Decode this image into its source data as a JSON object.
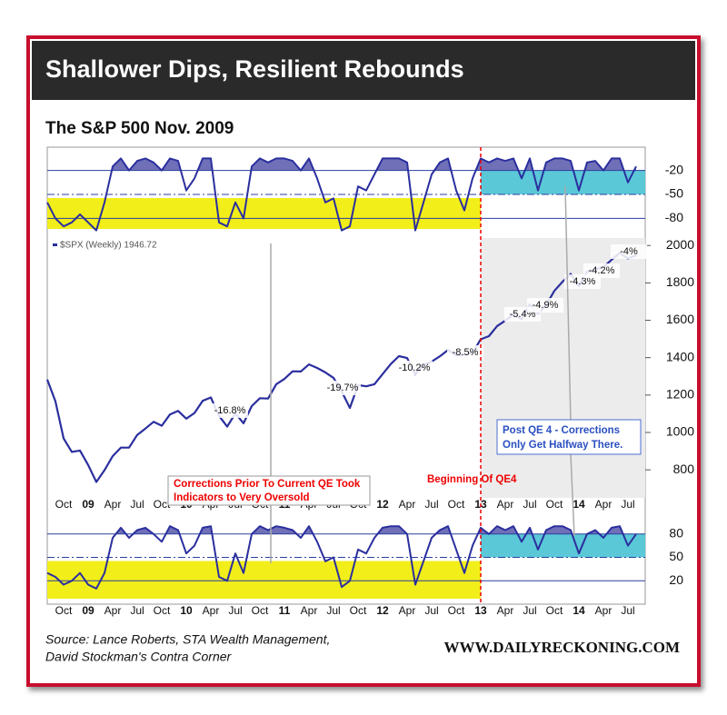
{
  "header": {
    "title": "Shallower Dips, Resilient Rebounds",
    "subtitle": "The S&P 500 Nov. 2009"
  },
  "notes": {
    "oversold": [
      "Corrections Prior To Current QE Took",
      "Indicators to Very Oversold"
    ],
    "qe4": "Beginning Of QE4",
    "post": [
      "Post QE 4 - Corrections",
      "Only Get Halfway There."
    ]
  },
  "footer": {
    "source": [
      "Source: Lance Roberts, STA Wealth Management,",
      "David Stockman's Contra Corner"
    ],
    "site": "WWW.DAILYRECKONING.COM"
  },
  "chart_data": [
    {
      "type": "line",
      "color": "#2b2f9e",
      "values": [
        -60,
        -80,
        -90,
        -85,
        -75,
        -85,
        -95,
        -60,
        -15,
        -5,
        -20,
        -8,
        -5,
        -10,
        -20,
        -5,
        -8,
        -45,
        -30,
        -5,
        -5,
        -85,
        -90,
        -60,
        -80,
        -15,
        -5,
        -10,
        -5,
        -5,
        -8,
        -20,
        -5,
        -30,
        -60,
        -55,
        -95,
        -90,
        -40,
        -45,
        -25,
        -5,
        -5,
        -5,
        -10,
        -95,
        -60,
        -25,
        -10,
        -5,
        -45,
        -70,
        -30,
        -5,
        -10,
        -5,
        -8,
        -5,
        -30,
        -5,
        -45,
        -10,
        -5,
        -5,
        -8,
        -45,
        -10,
        -8,
        -20,
        -5,
        -5,
        -35,
        -15
      ],
      "ylim": [
        -100,
        8
      ],
      "yticks": [
        -20,
        -50,
        -80
      ]
    },
    {
      "type": "line",
      "categories": [
        null,
        null,
        "Oct",
        null,
        null,
        "09",
        null,
        null,
        "Apr",
        null,
        null,
        "Jul",
        null,
        null,
        "Oct",
        null,
        null,
        "10",
        null,
        null,
        "Apr",
        null,
        null,
        "Jul",
        null,
        null,
        "Oct",
        null,
        null,
        "11",
        null,
        null,
        "Apr",
        null,
        null,
        "Jul",
        null,
        null,
        "Oct",
        null,
        null,
        "12",
        null,
        null,
        "Apr",
        null,
        null,
        "Jul",
        null,
        null,
        "Oct",
        null,
        null,
        "13",
        null,
        null,
        "Apr",
        null,
        null,
        "Jul",
        null,
        null,
        "Oct",
        null,
        null,
        "14",
        null,
        null,
        "Apr",
        null,
        null,
        "Jul",
        null
      ],
      "series": [
        {
          "name": "$SPX (Weekly) 1946.72",
          "color": "#2b2f9e",
          "values": [
            1283,
            1166,
            968,
            896,
            903,
            826,
            735,
            798,
            873,
            919,
            919,
            987,
            1021,
            1057,
            1036,
            1096,
            1115,
            1074,
            1104,
            1169,
            1187,
            1089,
            1031,
            1102,
            1049,
            1141,
            1183,
            1181,
            1258,
            1286,
            1327,
            1326,
            1364,
            1345,
            1321,
            1292,
            1219,
            1131,
            1253,
            1247,
            1258,
            1312,
            1366,
            1408,
            1398,
            1310,
            1362,
            1379,
            1407,
            1441,
            1412,
            1416,
            1426,
            1498,
            1515,
            1569,
            1598,
            1631,
            1606,
            1686,
            1633,
            1682,
            1757,
            1806,
            1848,
            1783,
            1859,
            1872,
            1884,
            1924,
            1960,
            1931,
            1947
          ]
        }
      ],
      "ylim": [
        650,
        2040
      ],
      "yticks": [
        800,
        1000,
        1200,
        1400,
        1600,
        1800,
        2000
      ],
      "annotations": [
        "-16.8%",
        "-19.7%",
        "-10.2%",
        "-8.5%",
        "-5.4%",
        "-4.9%",
        "-4.3%",
        "-4.2%",
        "-4%"
      ]
    },
    {
      "type": "line",
      "color": "#2b2f9e",
      "categories": [
        null,
        null,
        "Oct",
        null,
        null,
        "09",
        null,
        null,
        "Apr",
        null,
        null,
        "Jul",
        null,
        null,
        "Oct",
        null,
        null,
        "10",
        null,
        null,
        "Apr",
        null,
        null,
        "Jul",
        null,
        null,
        "Oct",
        null,
        null,
        "11",
        null,
        null,
        "Apr",
        null,
        null,
        "Jul",
        null,
        null,
        "Oct",
        null,
        null,
        "12",
        null,
        null,
        "Apr",
        null,
        null,
        "Jul",
        null,
        null,
        "Oct",
        null,
        null,
        "13",
        null,
        null,
        "Apr",
        null,
        null,
        "Jul",
        null,
        null,
        "Oct",
        null,
        null,
        "14",
        null,
        null,
        "Apr",
        null,
        null,
        "Jul",
        null
      ],
      "values": [
        30,
        25,
        15,
        20,
        30,
        15,
        10,
        30,
        75,
        88,
        75,
        85,
        88,
        80,
        70,
        90,
        85,
        55,
        65,
        88,
        90,
        25,
        20,
        55,
        30,
        80,
        90,
        85,
        90,
        88,
        85,
        75,
        90,
        70,
        45,
        50,
        12,
        20,
        60,
        55,
        75,
        88,
        90,
        90,
        80,
        15,
        45,
        75,
        85,
        90,
        60,
        30,
        65,
        88,
        80,
        90,
        85,
        90,
        70,
        88,
        60,
        85,
        90,
        90,
        85,
        55,
        80,
        85,
        75,
        88,
        90,
        65,
        80
      ],
      "ylim": [
        -10,
        110
      ],
      "yticks": [
        80,
        50,
        20
      ]
    }
  ]
}
